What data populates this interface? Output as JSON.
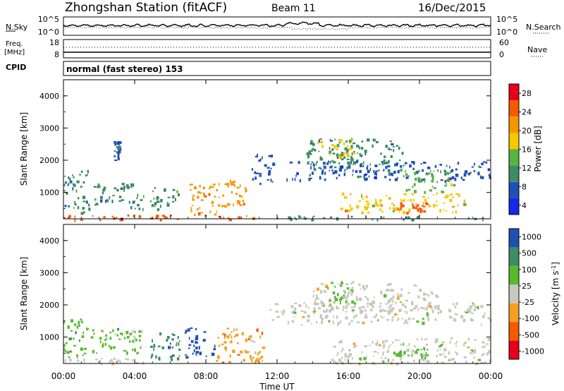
{
  "header": {
    "title": "Zhongshan Station (fitACF)",
    "beam": "Beam 11",
    "date": "16/Dec/2015"
  },
  "noise_panel": {
    "left_label": "N.Sky",
    "right_label": "N.Search",
    "left_ticks": [
      "10^5",
      "10^0"
    ],
    "right_ticks": [
      "10^5",
      "10^0"
    ]
  },
  "freq_panel": {
    "left_label_top": "Freq.",
    "left_label_unit": "[MHz]",
    "right_label": "Nave",
    "left_ticks": [
      "18",
      "8"
    ],
    "right_ticks": [
      "60",
      "0"
    ]
  },
  "cpid": {
    "label": "CPID",
    "value": "normal (fast stereo) 153"
  },
  "colors": {
    "velocity_scale": [
      "#e8001a",
      "#f55a00",
      "#f5a020",
      "#c8c8c0",
      "#55bb2c",
      "#3c8c64",
      "#2050b0"
    ],
    "power_scale": [
      "#1428e6",
      "#2050b4",
      "#3c8c64",
      "#55b442",
      "#f5c800",
      "#f59600",
      "#f55a00",
      "#e8001a"
    ]
  },
  "chart_data": [
    {
      "type": "heatmap",
      "title": "",
      "xlabel": "",
      "ylabel": "Slant Range [km]",
      "xlim": [
        0,
        24
      ],
      "ylim": [
        180,
        4500
      ],
      "x_ticks": [
        "00:00",
        "04:00",
        "08:00",
        "12:00",
        "16:00",
        "20:00",
        "00:00"
      ],
      "y_ticks": [
        "1000",
        "2000",
        "3000",
        "4000"
      ],
      "colorbar_label": "Power [dB]",
      "colorbar_ticks": [
        "28",
        "24",
        "20",
        "16",
        "12",
        "8",
        "4"
      ],
      "colorbar_range": [
        0,
        30
      ],
      "regions": [
        {
          "t0": 0.0,
          "t1": 11.8,
          "r0": 180,
          "r1": 320,
          "value": 26
        },
        {
          "t0": 12.0,
          "t1": 24.0,
          "r0": 180,
          "r1": 300,
          "value": 10
        },
        {
          "t0": 0.0,
          "t1": 1.4,
          "r0": 320,
          "r1": 1700,
          "value": 8
        },
        {
          "t0": 1.5,
          "t1": 4.5,
          "r0": 500,
          "r1": 1300,
          "value": 9
        },
        {
          "t0": 2.8,
          "t1": 3.1,
          "r0": 2000,
          "r1": 2600,
          "value": 6
        },
        {
          "t0": 4.8,
          "t1": 6.5,
          "r0": 500,
          "r1": 1200,
          "value": 10
        },
        {
          "t0": 7.0,
          "t1": 9.0,
          "r0": 320,
          "r1": 1300,
          "value": 20
        },
        {
          "t0": 9.0,
          "t1": 10.5,
          "r0": 600,
          "r1": 1400,
          "value": 22
        },
        {
          "t0": 10.5,
          "t1": 11.8,
          "r0": 1300,
          "r1": 2200,
          "value": 6
        },
        {
          "t0": 12.5,
          "t1": 24.0,
          "r0": 1400,
          "r1": 2000,
          "value": 6
        },
        {
          "t0": 13.5,
          "t1": 19.0,
          "r0": 1700,
          "r1": 2700,
          "value": 8
        },
        {
          "t0": 14.2,
          "t1": 16.5,
          "r0": 2100,
          "r1": 2700,
          "value": 16
        },
        {
          "t0": 15.5,
          "t1": 22.5,
          "r0": 400,
          "r1": 1000,
          "value": 18
        },
        {
          "t0": 18.5,
          "t1": 20.5,
          "r0": 400,
          "r1": 700,
          "value": 24
        },
        {
          "t0": 19.0,
          "t1": 22.0,
          "r0": 1000,
          "r1": 1700,
          "value": 12
        }
      ]
    },
    {
      "type": "heatmap",
      "title": "",
      "xlabel": "Time UT",
      "ylabel": "Slant Range [km]",
      "xlim": [
        0,
        24
      ],
      "ylim": [
        180,
        4500
      ],
      "x_ticks": [
        "00:00",
        "04:00",
        "08:00",
        "12:00",
        "16:00",
        "20:00",
        "00:00"
      ],
      "y_ticks": [
        "1000",
        "2000",
        "3000",
        "4000"
      ],
      "colorbar_label": "Velocity [m s^-1]",
      "colorbar_ticks": [
        "1000",
        "500",
        "100",
        "25",
        "-25",
        "-100",
        "-500",
        "-1000"
      ],
      "colorbar_range": [
        -1000,
        1000
      ],
      "regions": [
        {
          "t0": 0.0,
          "t1": 4.5,
          "r0": 180,
          "r1": 400,
          "value": -120
        },
        {
          "t0": 0.0,
          "t1": 1.4,
          "r0": 400,
          "r1": 1600,
          "value": 400
        },
        {
          "t0": 1.5,
          "t1": 4.5,
          "r0": 500,
          "r1": 1300,
          "value": 150
        },
        {
          "t0": 4.8,
          "t1": 6.5,
          "r0": 300,
          "r1": 1200,
          "value": 600
        },
        {
          "t0": 6.8,
          "t1": 8.5,
          "r0": 400,
          "r1": 1300,
          "value": 800
        },
        {
          "t0": 8.5,
          "t1": 11.2,
          "r0": 200,
          "r1": 1300,
          "value": -300
        },
        {
          "t0": 11.5,
          "t1": 24.0,
          "r0": 1400,
          "r1": 2100,
          "value": 0
        },
        {
          "t0": 14.0,
          "t1": 21.0,
          "r0": 1800,
          "r1": 2700,
          "value": 0
        },
        {
          "t0": 14.8,
          "t1": 16.3,
          "r0": 2100,
          "r1": 2800,
          "value": 200
        },
        {
          "t0": 15.0,
          "t1": 24.0,
          "r0": 200,
          "r1": 1000,
          "value": 80
        },
        {
          "t0": 18.5,
          "t1": 20.5,
          "r0": 400,
          "r1": 700,
          "value": 150
        }
      ]
    }
  ]
}
